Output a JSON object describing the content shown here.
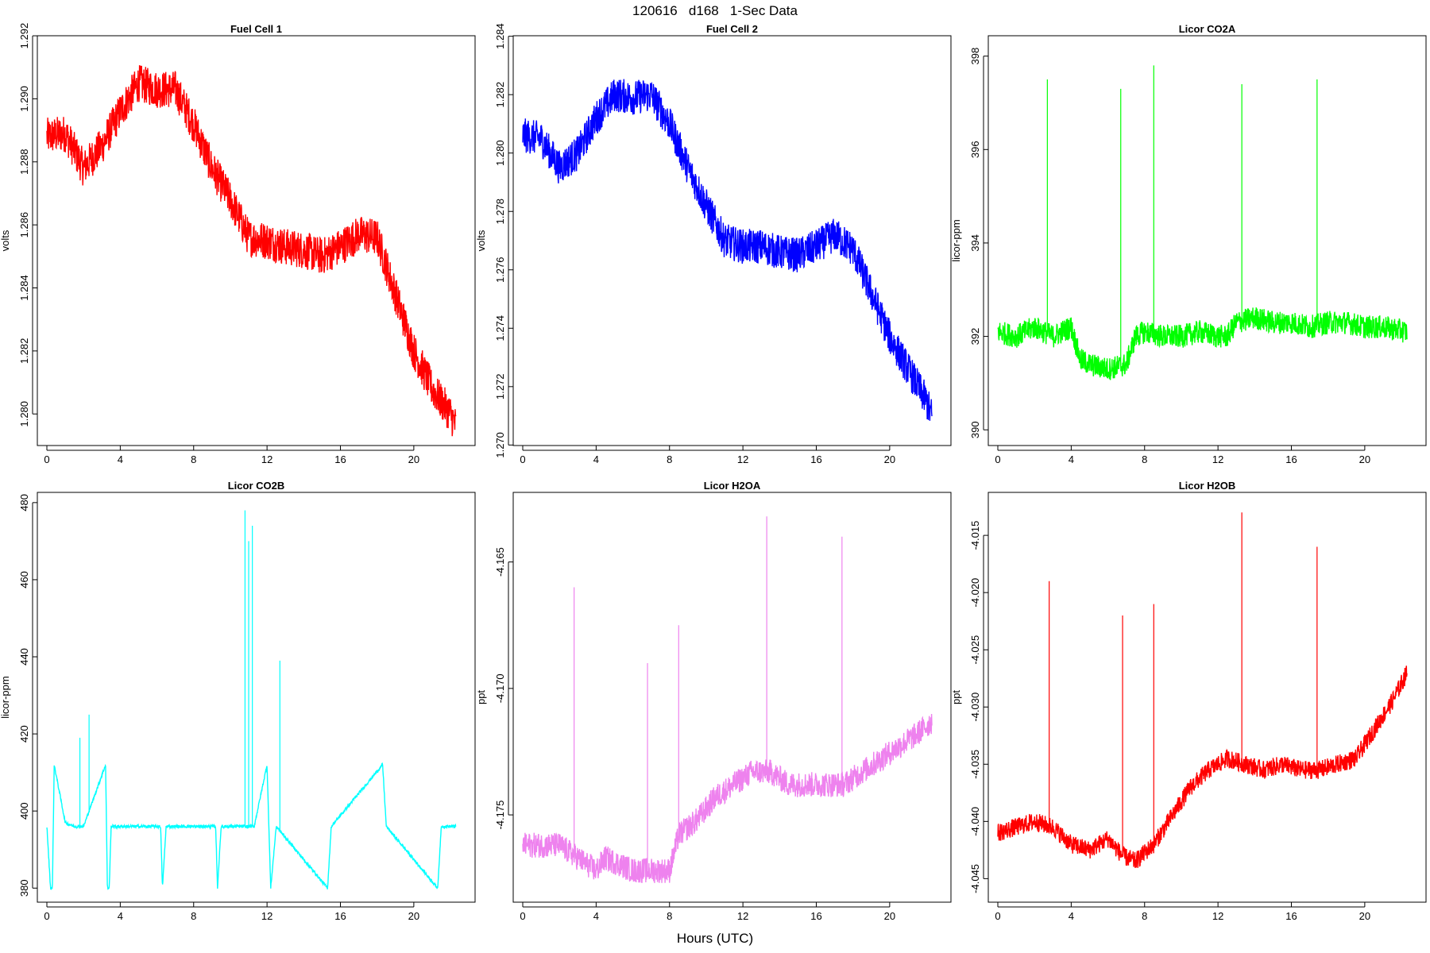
{
  "page": {
    "title": "120616   d168   1-Sec Data",
    "xlabel": "Hours (UTC)"
  },
  "chart_data": [
    {
      "type": "line",
      "title": "Fuel Cell 1",
      "ylabel": "volts",
      "color": "#ff0000",
      "xlim": [
        0,
        22.3
      ],
      "ylim": [
        1.2792,
        1.2918
      ],
      "xticks": [
        "0",
        "4",
        "8",
        "12",
        "16",
        "20"
      ],
      "yticks": [
        "1.280",
        "1.282",
        "1.284",
        "1.286",
        "1.288",
        "1.290",
        "1.292"
      ],
      "noise": 0.0006,
      "series": [
        {
          "name": "Fuel Cell 1",
          "x": [
            0,
            1,
            2,
            3,
            4,
            5,
            6,
            7,
            8,
            9,
            10,
            11,
            12,
            13,
            14,
            15,
            16,
            17,
            18,
            19,
            20,
            21,
            22,
            22.3
          ],
          "y": [
            1.2888,
            1.2889,
            1.2878,
            1.2885,
            1.2896,
            1.2905,
            1.2903,
            1.2903,
            1.2892,
            1.2878,
            1.2868,
            1.2856,
            1.2855,
            1.2853,
            1.2852,
            1.285,
            1.2853,
            1.2857,
            1.2856,
            1.2838,
            1.282,
            1.2808,
            1.28,
            1.2796
          ]
        }
      ]
    },
    {
      "type": "line",
      "title": "Fuel Cell 2",
      "ylabel": "volts",
      "color": "#0000ff",
      "xlim": [
        0,
        22.3
      ],
      "ylim": [
        1.2702,
        1.2838
      ],
      "xticks": [
        "0",
        "4",
        "8",
        "12",
        "16",
        "20"
      ],
      "yticks": [
        "1.270",
        "1.272",
        "1.274",
        "1.276",
        "1.278",
        "1.280",
        "1.282",
        "1.284"
      ],
      "noise": 0.0006,
      "series": [
        {
          "name": "Fuel Cell 2",
          "x": [
            0,
            1,
            2,
            3,
            4,
            5,
            6,
            7,
            8,
            9,
            10,
            11,
            12,
            13,
            14,
            15,
            16,
            17,
            18,
            19,
            20,
            21,
            22,
            22.3
          ],
          "y": [
            1.2806,
            1.2805,
            1.2795,
            1.28,
            1.2812,
            1.282,
            1.2819,
            1.282,
            1.281,
            1.2795,
            1.2782,
            1.277,
            1.2768,
            1.2768,
            1.2766,
            1.2765,
            1.2768,
            1.2772,
            1.2767,
            1.2752,
            1.2737,
            1.2726,
            1.2715,
            1.271
          ]
        }
      ]
    },
    {
      "type": "line",
      "title": "Licor CO2A",
      "ylabel": "licor-ppm",
      "color": "#00ff00",
      "xlim": [
        0,
        22.3
      ],
      "ylim": [
        389.8,
        398.3
      ],
      "xticks": [
        "0",
        "4",
        "8",
        "12",
        "16",
        "20"
      ],
      "yticks": [
        "390",
        "392",
        "394",
        "396",
        "398"
      ],
      "noise": 0.25,
      "series": [
        {
          "name": "CO2A",
          "x": [
            0,
            1,
            2,
            3,
            4,
            4.5,
            5,
            6,
            7,
            7.5,
            8,
            9,
            10,
            11,
            12,
            12.5,
            13,
            14,
            15,
            16,
            17,
            18,
            19,
            20,
            21,
            22.3
          ],
          "y": [
            392.1,
            392.0,
            392.2,
            392.0,
            392.2,
            391.5,
            391.4,
            391.3,
            391.4,
            392.0,
            392.1,
            392.0,
            392.0,
            392.1,
            392.0,
            392.0,
            392.3,
            392.4,
            392.3,
            392.3,
            392.2,
            392.3,
            392.3,
            392.2,
            392.2,
            392.1
          ]
        }
      ],
      "spikes": [
        {
          "x": 2.7,
          "y": 397.5
        },
        {
          "x": 6.7,
          "y": 397.3
        },
        {
          "x": 8.5,
          "y": 397.8
        },
        {
          "x": 13.3,
          "y": 397.4
        },
        {
          "x": 17.4,
          "y": 397.5
        }
      ]
    },
    {
      "type": "line",
      "title": "Licor CO2B",
      "ylabel": "licor-ppm",
      "color": "#00ffff",
      "xlim": [
        0,
        22.3
      ],
      "ylim": [
        378,
        481
      ],
      "xticks": [
        "0",
        "4",
        "8",
        "12",
        "16",
        "20"
      ],
      "yticks": [
        "380",
        "400",
        "420",
        "440",
        "460",
        "480"
      ],
      "noise": 0.4,
      "series": [
        {
          "name": "CO2B",
          "x": [
            0,
            0.2,
            0.3,
            0.4,
            1.0,
            1.5,
            2.0,
            3.2,
            3.3,
            3.4,
            3.5,
            6.2,
            6.3,
            6.5,
            9.2,
            9.3,
            9.5,
            10.8,
            11.3,
            12.0,
            12.2,
            12.5,
            15.3,
            15.5,
            18.3,
            18.5,
            21.3,
            21.5,
            22.3
          ],
          "y": [
            396,
            380,
            380,
            412,
            397,
            396,
            396,
            412,
            380,
            380,
            396,
            396,
            380,
            396,
            396,
            380,
            396,
            396,
            396,
            412,
            380,
            396,
            380,
            396,
            412,
            396,
            380,
            396,
            396
          ]
        }
      ],
      "spikes": [
        {
          "x": 1.8,
          "y": 419
        },
        {
          "x": 2.3,
          "y": 425
        },
        {
          "x": 10.8,
          "y": 478
        },
        {
          "x": 11.0,
          "y": 470
        },
        {
          "x": 11.2,
          "y": 474
        },
        {
          "x": 12.7,
          "y": 439
        }
      ]
    },
    {
      "type": "line",
      "title": "Licor H2OA",
      "ylabel": "ppt",
      "color": "#ee82ee",
      "xlim": [
        0,
        22.3
      ],
      "ylim": [
        -4.1782,
        -4.1625
      ],
      "xticks": [
        "0",
        "4",
        "8",
        "12",
        "16",
        "20"
      ],
      "yticks": [
        "-4.165",
        "-4.170",
        "-4.175"
      ],
      "noise": 0.0005,
      "series": [
        {
          "name": "H2OA",
          "x": [
            0,
            2,
            4,
            4.5,
            6,
            7,
            8,
            8.5,
            9.5,
            10.5,
            11.5,
            12.5,
            13.5,
            14.5,
            15.5,
            16.5,
            17.5,
            18.5,
            19.5,
            20.5,
            21.5,
            22.3
          ],
          "y": [
            -4.1762,
            -4.1762,
            -4.1772,
            -4.1767,
            -4.1772,
            -4.1772,
            -4.1772,
            -4.1758,
            -4.1752,
            -4.1743,
            -4.1738,
            -4.1733,
            -4.1733,
            -4.1738,
            -4.1738,
            -4.1738,
            -4.1738,
            -4.1733,
            -4.1728,
            -4.1723,
            -4.1718,
            -4.1713
          ]
        }
      ],
      "spikes": [
        {
          "x": 2.8,
          "y": -4.166
        },
        {
          "x": 6.8,
          "y": -4.169
        },
        {
          "x": 8.5,
          "y": -4.1675
        },
        {
          "x": 13.3,
          "y": -4.1632
        },
        {
          "x": 17.4,
          "y": -4.164
        }
      ]
    },
    {
      "type": "line",
      "title": "Licor H2OB",
      "ylabel": "ppt",
      "color": "#ff0000",
      "xlim": [
        0,
        22.3
      ],
      "ylim": [
        -4.0465,
        -4.0118
      ],
      "xticks": [
        "0",
        "4",
        "8",
        "12",
        "16",
        "20"
      ],
      "yticks": [
        "-4.015",
        "-4.020",
        "-4.025",
        "-4.030",
        "-4.035",
        "-4.040",
        "-4.045"
      ],
      "noise": 0.0008,
      "series": [
        {
          "name": "H2OB",
          "x": [
            0,
            1,
            2,
            3,
            4,
            5,
            6,
            6.8,
            7.5,
            8.5,
            9.5,
            10.5,
            11.5,
            12.5,
            13.5,
            14.5,
            15.5,
            16.5,
            17.5,
            18.5,
            19.5,
            20.5,
            21.5,
            22.3
          ],
          "y": [
            -4.041,
            -4.0405,
            -4.04,
            -4.0405,
            -4.042,
            -4.0425,
            -4.0415,
            -4.043,
            -4.0435,
            -4.042,
            -4.0395,
            -4.037,
            -4.0355,
            -4.0345,
            -4.035,
            -4.0355,
            -4.035,
            -4.0355,
            -4.0355,
            -4.035,
            -4.0345,
            -4.032,
            -4.0295,
            -4.027
          ]
        }
      ],
      "spikes": [
        {
          "x": 2.8,
          "y": -4.019
        },
        {
          "x": 6.8,
          "y": -4.022
        },
        {
          "x": 8.5,
          "y": -4.021
        },
        {
          "x": 13.3,
          "y": -4.013
        },
        {
          "x": 17.4,
          "y": -4.016
        }
      ]
    }
  ]
}
